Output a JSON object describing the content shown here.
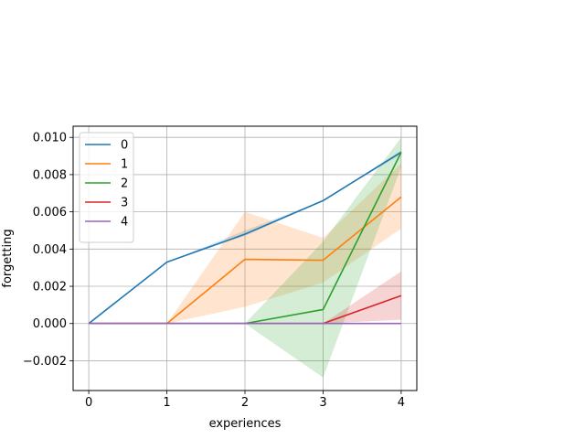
{
  "chart_data": {
    "type": "line",
    "xlabel": "experiences",
    "ylabel": "forgetting",
    "x": [
      0,
      1,
      2,
      3,
      4
    ],
    "xlim": [
      -0.2,
      4.2
    ],
    "ylim": [
      -0.0036,
      0.0106
    ],
    "xticks": [
      0,
      1,
      2,
      3,
      4
    ],
    "yticks": [
      -0.002,
      0.0,
      0.002,
      0.004,
      0.006,
      0.008,
      0.01
    ],
    "ytick_labels": [
      "−0.002",
      "0.000",
      "0.002",
      "0.004",
      "0.006",
      "0.008",
      "0.010"
    ],
    "grid": true,
    "legend_position": "top-left",
    "series": [
      {
        "name": "0",
        "color": "#1f77b4",
        "values": [
          0.0,
          0.0033,
          0.0048,
          0.0066,
          0.0092
        ],
        "lower": [
          0.0,
          0.0033,
          0.0047,
          0.0066,
          0.0091
        ],
        "upper": [
          0.0,
          0.0033,
          0.005,
          0.0066,
          0.0093
        ]
      },
      {
        "name": "1",
        "color": "#ff7f0e",
        "values": [
          0.0,
          0.0,
          0.00345,
          0.0034,
          0.0068
        ],
        "lower": [
          0.0,
          0.0,
          0.0009,
          0.0022,
          0.0051
        ],
        "upper": [
          0.0,
          0.0,
          0.006,
          0.0046,
          0.0086
        ]
      },
      {
        "name": "2",
        "color": "#2ca02c",
        "values": [
          0.0,
          0.0,
          0.0,
          0.00075,
          0.0092
        ],
        "lower": [
          0.0,
          0.0,
          0.0,
          -0.0029,
          0.0084
        ],
        "upper": [
          0.0,
          0.0,
          0.0,
          0.0044,
          0.01
        ]
      },
      {
        "name": "3",
        "color": "#d62728",
        "values": [
          0.0,
          0.0,
          0.0,
          0.0,
          0.0015
        ],
        "lower": [
          0.0,
          0.0,
          0.0,
          0.0,
          0.0002
        ],
        "upper": [
          0.0,
          0.0,
          0.0,
          0.0,
          0.0028
        ]
      },
      {
        "name": "4",
        "color": "#9467bd",
        "values": [
          0.0,
          0.0,
          0.0,
          0.0,
          0.0
        ],
        "lower": [
          0.0,
          0.0,
          0.0,
          0.0,
          0.0
        ],
        "upper": [
          0.0,
          0.0,
          0.0,
          0.0,
          0.0
        ]
      }
    ]
  }
}
